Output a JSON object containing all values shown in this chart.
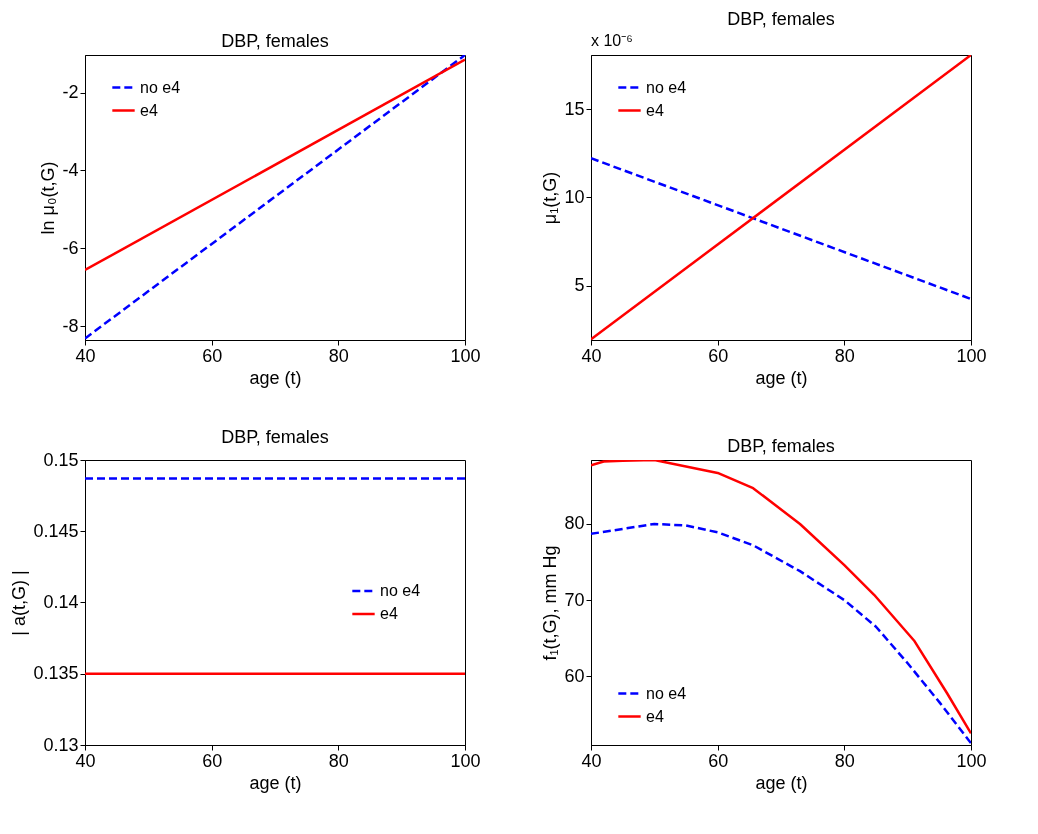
{
  "chart_data": [
    {
      "type": "line",
      "title": "DBP, females",
      "xlabel": "age (t)",
      "ylabel": "ln  μ₀(t,G)",
      "xlim": [
        40,
        100
      ],
      "xticks": [
        40,
        60,
        80,
        100
      ],
      "ylim": [
        -8.36,
        -1.03
      ],
      "yticks": [
        -8,
        -6,
        -4,
        -2
      ],
      "legend": "top left",
      "series": [
        {
          "name": "no e4",
          "color": "#0000ff",
          "line_style": "dashed",
          "x": [
            40,
            100
          ],
          "values": [
            -8.32,
            -1.03
          ]
        },
        {
          "name": "e4",
          "color": "#ff0000",
          "line_style": "solid",
          "x": [
            40,
            100
          ],
          "values": [
            -6.56,
            -1.15
          ]
        }
      ]
    },
    {
      "type": "line",
      "title": "DBP, females",
      "xlabel": "age (t)",
      "ylabel": "μ₁(t,G)",
      "annotations": [
        "x 10⁻⁶"
      ],
      "xlim": [
        40,
        100
      ],
      "xticks": [
        40,
        60,
        80,
        100
      ],
      "ylim": [
        1.94,
        18.06
      ],
      "yticks": [
        5,
        10,
        15
      ],
      "legend": "top left",
      "series": [
        {
          "name": "no e4",
          "color": "#0000ff",
          "line_style": "dashed",
          "x": [
            40,
            100
          ],
          "values": [
            12.22,
            4.26
          ]
        },
        {
          "name": "e4",
          "color": "#ff0000",
          "line_style": "solid",
          "x": [
            40,
            100
          ],
          "values": [
            1.98,
            18.06
          ]
        }
      ]
    },
    {
      "type": "line",
      "title": "DBP, females",
      "xlabel": "age (t)",
      "ylabel": "| a(t,G) |",
      "xlim": [
        40,
        100
      ],
      "xticks": [
        40,
        60,
        80,
        100
      ],
      "ylim": [
        0.13,
        0.15
      ],
      "yticks": [
        0.13,
        0.135,
        0.14,
        0.145,
        0.15
      ],
      "legend": "right",
      "series": [
        {
          "name": "no e4",
          "color": "#0000ff",
          "line_style": "dashed",
          "x": [
            40,
            100
          ],
          "values": [
            0.1487,
            0.1487
          ]
        },
        {
          "name": "e4",
          "color": "#ff0000",
          "line_style": "solid",
          "x": [
            40,
            100
          ],
          "values": [
            0.135,
            0.135
          ]
        }
      ]
    },
    {
      "type": "line",
      "title": "DBP, females",
      "xlabel": "age (t)",
      "ylabel": "f₁(t,G), mm Hg",
      "xlim": [
        40,
        100
      ],
      "xticks": [
        40,
        60,
        80,
        100
      ],
      "ylim": [
        50.97,
        88.4
      ],
      "yticks": [
        60,
        70,
        80
      ],
      "legend": "bottom left",
      "series": [
        {
          "name": "no e4",
          "color": "#0000ff",
          "line_style": "dashed",
          "x": [
            40,
            50,
            55,
            60,
            65.6,
            73,
            80,
            85,
            90,
            95,
            100
          ],
          "values": [
            78.7,
            80.0,
            79.8,
            78.9,
            77.2,
            73.8,
            70.0,
            66.5,
            61.7,
            56.6,
            51.2
          ]
        },
        {
          "name": "e4",
          "color": "#ff0000",
          "line_style": "solid",
          "x": [
            40,
            42,
            45,
            50,
            60,
            65.6,
            73,
            80,
            84.7,
            91,
            96.2,
            100
          ],
          "values": [
            87.7,
            88.2,
            88.3,
            88.4,
            86.7,
            84.7,
            80.0,
            74.6,
            70.7,
            64.7,
            57.8,
            52.5
          ]
        }
      ]
    }
  ]
}
